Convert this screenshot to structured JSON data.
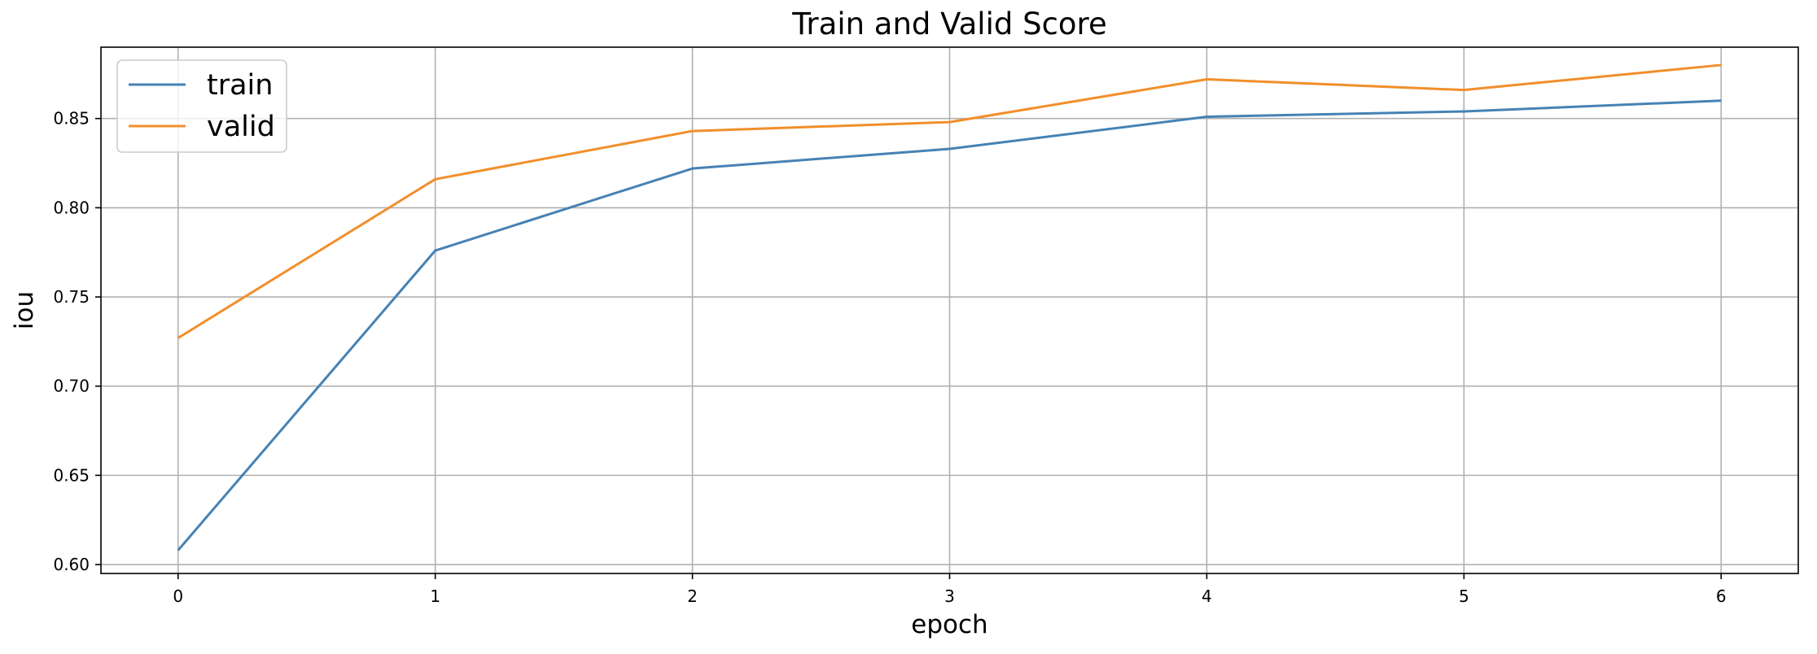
{
  "chart_data": {
    "type": "line",
    "title": "Train and Valid Score",
    "xlabel": "epoch",
    "ylabel": "iou",
    "x": [
      0,
      1,
      2,
      3,
      4,
      5,
      6
    ],
    "xticks": [
      "0",
      "1",
      "2",
      "3",
      "4",
      "5",
      "6"
    ],
    "yticks": [
      "0.60",
      "0.65",
      "0.70",
      "0.75",
      "0.80",
      "0.85"
    ],
    "xlim": [
      -0.3,
      6.3
    ],
    "ylim": [
      0.595,
      0.89
    ],
    "grid": true,
    "legend_position": "top-left",
    "series": [
      {
        "name": "train",
        "color": "#4682b4",
        "values": [
          0.608,
          0.776,
          0.822,
          0.833,
          0.851,
          0.854,
          0.86
        ]
      },
      {
        "name": "valid",
        "color": "#f28e2b",
        "values": [
          0.727,
          0.816,
          0.843,
          0.848,
          0.872,
          0.866,
          0.88
        ]
      }
    ]
  }
}
